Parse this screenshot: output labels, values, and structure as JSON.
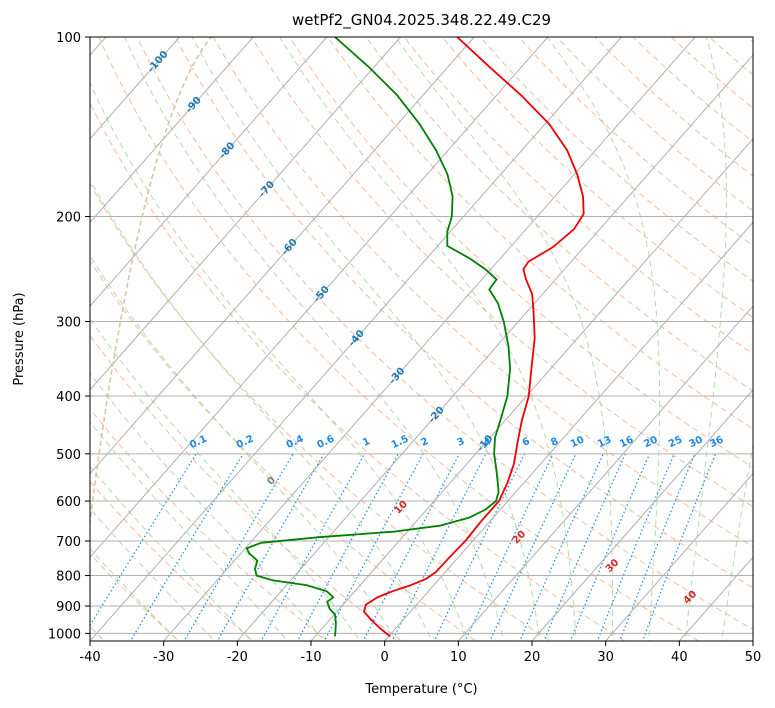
{
  "chart_data": {
    "type": "skew-t",
    "title": "wetPf2_GN04.2025.348.22.49.C29",
    "xlabel": "Temperature (°C)",
    "ylabel": "Pressure (hPa)",
    "xlim": [
      -40,
      50
    ],
    "ylim": [
      1030,
      100
    ],
    "x_ticks": [
      -40,
      -30,
      -20,
      -10,
      0,
      10,
      20,
      30,
      40,
      50
    ],
    "y_ticks": [
      100,
      200,
      300,
      400,
      500,
      600,
      700,
      800,
      900,
      1000
    ],
    "grid": true,
    "temperature_profile": {
      "name": "Temperature",
      "color": "#ee0000",
      "points": [
        {
          "p": 1012,
          "t": 0.2
        },
        {
          "p": 980,
          "t": -2.2
        },
        {
          "p": 950,
          "t": -4.3
        },
        {
          "p": 920,
          "t": -6.3
        },
        {
          "p": 895,
          "t": -6.9
        },
        {
          "p": 870,
          "t": -6.2
        },
        {
          "p": 850,
          "t": -4.9
        },
        {
          "p": 830,
          "t": -3.1
        },
        {
          "p": 810,
          "t": -1.8
        },
        {
          "p": 790,
          "t": -1.3
        },
        {
          "p": 750,
          "t": -1.2
        },
        {
          "p": 700,
          "t": -1.0
        },
        {
          "p": 650,
          "t": -1.2
        },
        {
          "p": 600,
          "t": -1.2
        },
        {
          "p": 560,
          "t": -2.2
        },
        {
          "p": 520,
          "t": -3.6
        },
        {
          "p": 480,
          "t": -5.6
        },
        {
          "p": 440,
          "t": -7.7
        },
        {
          "p": 400,
          "t": -9.7
        },
        {
          "p": 360,
          "t": -12.6
        },
        {
          "p": 320,
          "t": -15.8
        },
        {
          "p": 290,
          "t": -19.0
        },
        {
          "p": 270,
          "t": -21.4
        },
        {
          "p": 255,
          "t": -24.0
        },
        {
          "p": 245,
          "t": -25.6
        },
        {
          "p": 238,
          "t": -25.8
        },
        {
          "p": 225,
          "t": -24.2
        },
        {
          "p": 210,
          "t": -23.5
        },
        {
          "p": 198,
          "t": -24.0
        },
        {
          "p": 185,
          "t": -26.2
        },
        {
          "p": 170,
          "t": -29.6
        },
        {
          "p": 155,
          "t": -33.8
        },
        {
          "p": 140,
          "t": -39.4
        },
        {
          "p": 125,
          "t": -46.8
        },
        {
          "p": 112,
          "t": -54.5
        },
        {
          "p": 100,
          "t": -62.3
        }
      ]
    },
    "dewpoint_profile": {
      "name": "Dewpoint",
      "color": "#008000",
      "points": [
        {
          "p": 1012,
          "t": -7.3
        },
        {
          "p": 990,
          "t": -7.9
        },
        {
          "p": 960,
          "t": -8.8
        },
        {
          "p": 930,
          "t": -9.9
        },
        {
          "p": 910,
          "t": -11.3
        },
        {
          "p": 885,
          "t": -12.5
        },
        {
          "p": 870,
          "t": -12.2
        },
        {
          "p": 850,
          "t": -13.8
        },
        {
          "p": 830,
          "t": -17.3
        },
        {
          "p": 815,
          "t": -22.4
        },
        {
          "p": 800,
          "t": -25.2
        },
        {
          "p": 780,
          "t": -26.2
        },
        {
          "p": 755,
          "t": -26.9
        },
        {
          "p": 735,
          "t": -28.8
        },
        {
          "p": 720,
          "t": -29.8
        },
        {
          "p": 705,
          "t": -28.5
        },
        {
          "p": 690,
          "t": -21.3
        },
        {
          "p": 675,
          "t": -11.8
        },
        {
          "p": 660,
          "t": -6.3
        },
        {
          "p": 640,
          "t": -3.3
        },
        {
          "p": 620,
          "t": -2.0
        },
        {
          "p": 600,
          "t": -1.6
        },
        {
          "p": 580,
          "t": -2.3
        },
        {
          "p": 560,
          "t": -3.5
        },
        {
          "p": 530,
          "t": -5.4
        },
        {
          "p": 500,
          "t": -7.5
        },
        {
          "p": 470,
          "t": -9.3
        },
        {
          "p": 430,
          "t": -11.1
        },
        {
          "p": 400,
          "t": -12.6
        },
        {
          "p": 360,
          "t": -15.5
        },
        {
          "p": 330,
          "t": -18.4
        },
        {
          "p": 300,
          "t": -22.0
        },
        {
          "p": 280,
          "t": -24.9
        },
        {
          "p": 265,
          "t": -27.8
        },
        {
          "p": 255,
          "t": -28.0
        },
        {
          "p": 245,
          "t": -30.8
        },
        {
          "p": 235,
          "t": -34.2
        },
        {
          "p": 224,
          "t": -38.7
        },
        {
          "p": 212,
          "t": -40.4
        },
        {
          "p": 200,
          "t": -41.6
        },
        {
          "p": 185,
          "t": -43.9
        },
        {
          "p": 170,
          "t": -47.2
        },
        {
          "p": 155,
          "t": -51.6
        },
        {
          "p": 140,
          "t": -57.0
        },
        {
          "p": 125,
          "t": -63.6
        },
        {
          "p": 112,
          "t": -70.9
        },
        {
          "p": 100,
          "t": -78.9
        }
      ]
    },
    "isotherm_labels": [
      "-100",
      "-90",
      "-80",
      "-70",
      "-60",
      "-50",
      "-40",
      "-30",
      "-20",
      "-10"
    ],
    "isotherm_values": [
      -100,
      -90,
      -80,
      -70,
      -60,
      -50,
      -40,
      -30,
      -20,
      -10
    ],
    "mixing_ratio_labels": [
      "0.1",
      "0.2",
      "0.4",
      "0.6",
      "1",
      "1.5",
      "2",
      "3",
      "4",
      "6",
      "8",
      "10",
      "13",
      "16",
      "20",
      "25",
      "30",
      "36"
    ],
    "mixing_ratio_values": [
      0.1,
      0.2,
      0.4,
      0.6,
      1,
      1.5,
      2,
      3,
      4,
      6,
      8,
      10,
      13,
      16,
      20,
      25,
      30,
      36
    ],
    "moist_adiabat_labels": [
      "0",
      "10",
      "20",
      "30",
      "40"
    ],
    "moist_adiabat_values": [
      0,
      10,
      20,
      30,
      40
    ],
    "colors": {
      "grid": "#b0b0b0",
      "isotherm_label": "#1f77b4",
      "mixing_ratio": "#1e88e5",
      "dry_adiabat": "#f4a582",
      "moist_adiabat": "#a8d5a2",
      "moist_label_zero": "#808080",
      "moist_label": "#d62728",
      "outer_curve": "#d9c4a8"
    }
  }
}
